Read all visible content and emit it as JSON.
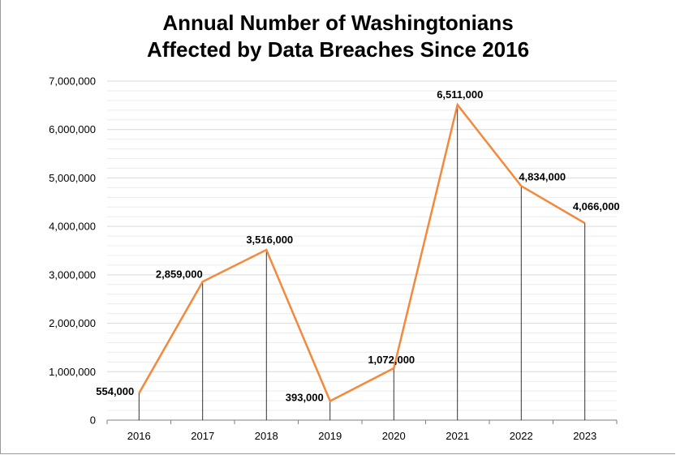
{
  "chart_data": {
    "type": "line",
    "title_line1": "Annual Number of Washingtonians",
    "title_line2": "Affected by Data Breaches Since 2016",
    "x": [
      "2016",
      "2017",
      "2018",
      "2019",
      "2020",
      "2021",
      "2022",
      "2023"
    ],
    "values": [
      554000,
      2859000,
      3516000,
      393000,
      1072000,
      6511000,
      4834000,
      4066000
    ],
    "data_labels": [
      "554,000",
      "2,859,000",
      "3,516,000",
      "393,000",
      "1,072,000",
      "6,511,000",
      "4,834,000",
      "4,066,000"
    ],
    "ylim": [
      0,
      7000000
    ],
    "yticks": [
      0,
      1000000,
      2000000,
      3000000,
      4000000,
      5000000,
      6000000,
      7000000
    ],
    "ytick_labels": [
      "0",
      "1,000,000",
      "2,000,000",
      "3,000,000",
      "4,000,000",
      "5,000,000",
      "6,000,000",
      "7,000,000"
    ],
    "xlabel": "",
    "ylabel": "",
    "grid": true,
    "drop_lines": true,
    "line_color": "#f4883b",
    "grid_color": "#d9d9d9",
    "drop_line_color": "#000000"
  }
}
